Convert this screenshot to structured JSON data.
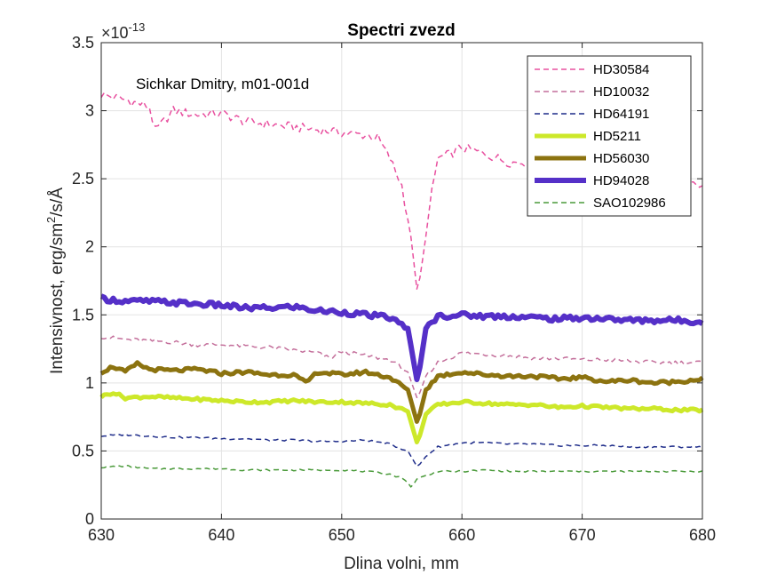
{
  "chart_data": {
    "type": "line",
    "title": "Spectri zvezd",
    "xlabel": "Dlina volni, mm",
    "ylabel_prefix": "Intensivnost, erg/sm",
    "ylabel_sup": "2",
    "ylabel_suffix": "/s/Å",
    "exponent_base": "×10",
    "exponent_power": "-13",
    "annotation": "Sichkar Dmitry, m01-001d",
    "xlim": [
      630,
      680
    ],
    "ylim": [
      0,
      3.5
    ],
    "xticks": [
      630,
      640,
      650,
      660,
      670,
      680
    ],
    "yticks": [
      0,
      0.5,
      1,
      1.5,
      2,
      2.5,
      3,
      3.5
    ],
    "ytick_labels": [
      "0",
      "0.5",
      "1",
      "1.5",
      "2",
      "2.5",
      "3",
      "3.5"
    ],
    "grid": true,
    "legend_position": "top-right",
    "line_center": 656.3,
    "series": [
      {
        "name": "HD30584",
        "color": "#e8509f",
        "dash": "dashed",
        "width": "thin",
        "points": [
          [
            630,
            3.12
          ],
          [
            632,
            3.08
          ],
          [
            634,
            3.03
          ],
          [
            634.5,
            2.85
          ],
          [
            636,
            3.0
          ],
          [
            638,
            2.97
          ],
          [
            640,
            2.98
          ],
          [
            642,
            2.92
          ],
          [
            644,
            2.9
          ],
          [
            646,
            2.88
          ],
          [
            648,
            2.86
          ],
          [
            650,
            2.84
          ],
          [
            652,
            2.82
          ],
          [
            653,
            2.8
          ],
          [
            654,
            2.65
          ],
          [
            655,
            2.45
          ],
          [
            655.8,
            2.05
          ],
          [
            656.3,
            1.65
          ],
          [
            656.8,
            1.95
          ],
          [
            657.5,
            2.4
          ],
          [
            658,
            2.65
          ],
          [
            659,
            2.68
          ],
          [
            660,
            2.73
          ],
          [
            662,
            2.68
          ],
          [
            664,
            2.62
          ],
          [
            666,
            2.62
          ],
          [
            668,
            2.58
          ],
          [
            670,
            2.6
          ],
          [
            672,
            2.55
          ],
          [
            674,
            2.52
          ],
          [
            676,
            2.5
          ],
          [
            678,
            2.48
          ],
          [
            680,
            2.44
          ]
        ]
      },
      {
        "name": "HD10032",
        "color": "#c46f9b",
        "dash": "dashed",
        "width": "thin",
        "points": [
          [
            630,
            1.34
          ],
          [
            632,
            1.32
          ],
          [
            634,
            1.31
          ],
          [
            636,
            1.3
          ],
          [
            638,
            1.28
          ],
          [
            640,
            1.28
          ],
          [
            642,
            1.27
          ],
          [
            644,
            1.26
          ],
          [
            646,
            1.24
          ],
          [
            648,
            1.22
          ],
          [
            649,
            1.18
          ],
          [
            650,
            1.23
          ],
          [
            652,
            1.2
          ],
          [
            654,
            1.17
          ],
          [
            655.5,
            1.08
          ],
          [
            656.3,
            0.88
          ],
          [
            657,
            1.05
          ],
          [
            658,
            1.15
          ],
          [
            660,
            1.22
          ],
          [
            662,
            1.21
          ],
          [
            664,
            1.2
          ],
          [
            666,
            1.18
          ],
          [
            668,
            1.18
          ],
          [
            670,
            1.17
          ],
          [
            672,
            1.17
          ],
          [
            674,
            1.16
          ],
          [
            676,
            1.15
          ],
          [
            678,
            1.15
          ],
          [
            680,
            1.15
          ]
        ]
      },
      {
        "name": "HD64191",
        "color": "#1f2d8a",
        "dash": "dashed",
        "width": "thin",
        "points": [
          [
            630,
            0.61
          ],
          [
            632,
            0.62
          ],
          [
            634,
            0.61
          ],
          [
            636,
            0.6
          ],
          [
            638,
            0.6
          ],
          [
            640,
            0.59
          ],
          [
            642,
            0.59
          ],
          [
            644,
            0.58
          ],
          [
            646,
            0.58
          ],
          [
            648,
            0.57
          ],
          [
            650,
            0.57
          ],
          [
            652,
            0.58
          ],
          [
            654,
            0.55
          ],
          [
            655.5,
            0.5
          ],
          [
            656.3,
            0.38
          ],
          [
            657,
            0.46
          ],
          [
            658,
            0.53
          ],
          [
            660,
            0.56
          ],
          [
            662,
            0.56
          ],
          [
            664,
            0.55
          ],
          [
            666,
            0.55
          ],
          [
            668,
            0.54
          ],
          [
            670,
            0.54
          ],
          [
            672,
            0.54
          ],
          [
            674,
            0.53
          ],
          [
            676,
            0.53
          ],
          [
            678,
            0.53
          ],
          [
            680,
            0.53
          ]
        ]
      },
      {
        "name": "HD5211",
        "color": "#cde82a",
        "dash": "solid",
        "width": "thick",
        "points": [
          [
            630,
            0.9
          ],
          [
            631,
            0.93
          ],
          [
            632,
            0.89
          ],
          [
            634,
            0.9
          ],
          [
            636,
            0.89
          ],
          [
            638,
            0.88
          ],
          [
            640,
            0.87
          ],
          [
            642,
            0.86
          ],
          [
            644,
            0.86
          ],
          [
            646,
            0.87
          ],
          [
            648,
            0.86
          ],
          [
            650,
            0.86
          ],
          [
            652,
            0.85
          ],
          [
            654,
            0.84
          ],
          [
            655.5,
            0.79
          ],
          [
            656.3,
            0.55
          ],
          [
            657,
            0.77
          ],
          [
            658,
            0.84
          ],
          [
            660,
            0.86
          ],
          [
            662,
            0.85
          ],
          [
            664,
            0.84
          ],
          [
            666,
            0.84
          ],
          [
            668,
            0.82
          ],
          [
            670,
            0.83
          ],
          [
            672,
            0.82
          ],
          [
            674,
            0.81
          ],
          [
            676,
            0.81
          ],
          [
            678,
            0.8
          ],
          [
            680,
            0.8
          ]
        ]
      },
      {
        "name": "HD56030",
        "color": "#8c7310",
        "dash": "solid",
        "width": "thick",
        "points": [
          [
            630,
            1.08
          ],
          [
            631,
            1.12
          ],
          [
            632,
            1.08
          ],
          [
            633,
            1.14
          ],
          [
            634,
            1.1
          ],
          [
            636,
            1.09
          ],
          [
            638,
            1.1
          ],
          [
            640,
            1.07
          ],
          [
            642,
            1.08
          ],
          [
            644,
            1.06
          ],
          [
            646,
            1.06
          ],
          [
            647,
            1.0
          ],
          [
            648,
            1.08
          ],
          [
            650,
            1.06
          ],
          [
            652,
            1.08
          ],
          [
            654,
            1.04
          ],
          [
            655.5,
            0.95
          ],
          [
            656.3,
            0.7
          ],
          [
            657,
            0.95
          ],
          [
            658,
            1.05
          ],
          [
            660,
            1.08
          ],
          [
            662,
            1.06
          ],
          [
            664,
            1.05
          ],
          [
            666,
            1.05
          ],
          [
            668,
            1.03
          ],
          [
            670,
            1.04
          ],
          [
            672,
            1.01
          ],
          [
            674,
            1.02
          ],
          [
            676,
            1.0
          ],
          [
            678,
            1.01
          ],
          [
            680,
            1.03
          ]
        ]
      },
      {
        "name": "HD94028",
        "color": "#5530c8",
        "dash": "solid",
        "width": "thicker",
        "points": [
          [
            630,
            1.62
          ],
          [
            632,
            1.6
          ],
          [
            634,
            1.6
          ],
          [
            636,
            1.59
          ],
          [
            638,
            1.58
          ],
          [
            640,
            1.57
          ],
          [
            642,
            1.55
          ],
          [
            644,
            1.55
          ],
          [
            646,
            1.56
          ],
          [
            648,
            1.53
          ],
          [
            650,
            1.52
          ],
          [
            652,
            1.5
          ],
          [
            654,
            1.48
          ],
          [
            655.5,
            1.4
          ],
          [
            656.3,
            1.0
          ],
          [
            657,
            1.4
          ],
          [
            658,
            1.49
          ],
          [
            660,
            1.5
          ],
          [
            662,
            1.49
          ],
          [
            664,
            1.49
          ],
          [
            666,
            1.48
          ],
          [
            668,
            1.47
          ],
          [
            670,
            1.48
          ],
          [
            672,
            1.47
          ],
          [
            674,
            1.46
          ],
          [
            676,
            1.46
          ],
          [
            678,
            1.46
          ],
          [
            680,
            1.45
          ]
        ]
      },
      {
        "name": "SAO102986",
        "color": "#4a9a3a",
        "dash": "dashed",
        "width": "thin",
        "points": [
          [
            630,
            0.38
          ],
          [
            632,
            0.39
          ],
          [
            634,
            0.37
          ],
          [
            636,
            0.37
          ],
          [
            638,
            0.37
          ],
          [
            640,
            0.37
          ],
          [
            642,
            0.36
          ],
          [
            644,
            0.36
          ],
          [
            646,
            0.36
          ],
          [
            648,
            0.36
          ],
          [
            650,
            0.36
          ],
          [
            652,
            0.35
          ],
          [
            654,
            0.33
          ],
          [
            655.3,
            0.29
          ],
          [
            655.8,
            0.23
          ],
          [
            656.3,
            0.3
          ],
          [
            657,
            0.32
          ],
          [
            658,
            0.35
          ],
          [
            660,
            0.35
          ],
          [
            662,
            0.36
          ],
          [
            664,
            0.35
          ],
          [
            666,
            0.35
          ],
          [
            668,
            0.35
          ],
          [
            670,
            0.35
          ],
          [
            672,
            0.35
          ],
          [
            674,
            0.35
          ],
          [
            676,
            0.35
          ],
          [
            678,
            0.35
          ],
          [
            680,
            0.35
          ]
        ]
      }
    ]
  }
}
